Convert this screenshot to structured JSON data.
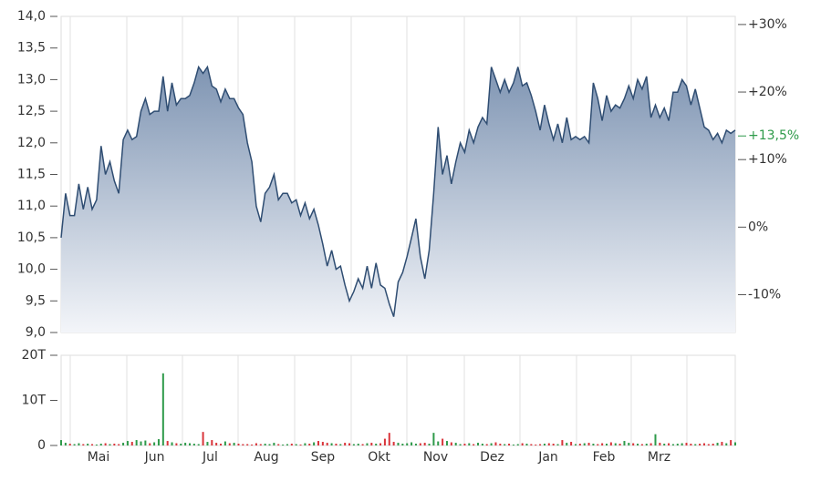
{
  "chart_data": {
    "type": "stock",
    "price": {
      "values": [
        10.5,
        11.2,
        10.85,
        10.85,
        11.35,
        10.95,
        11.3,
        10.95,
        11.1,
        11.95,
        11.5,
        11.7,
        11.4,
        11.2,
        12.05,
        12.2,
        12.05,
        12.1,
        12.5,
        12.7,
        12.45,
        12.5,
        12.5,
        13.05,
        12.5,
        12.95,
        12.6,
        12.7,
        12.7,
        12.75,
        12.95,
        13.2,
        13.1,
        13.2,
        12.9,
        12.85,
        12.65,
        12.85,
        12.7,
        12.7,
        12.55,
        12.45,
        12.0,
        11.7,
        11.0,
        10.75,
        11.2,
        11.3,
        11.5,
        11.1,
        11.2,
        11.2,
        11.05,
        11.1,
        10.85,
        11.05,
        10.8,
        10.95,
        10.7,
        10.4,
        10.05,
        10.3,
        10.0,
        10.05,
        9.75,
        9.5,
        9.65,
        9.85,
        9.7,
        10.05,
        9.7,
        10.1,
        9.75,
        9.7,
        9.45,
        9.25,
        9.8,
        9.95,
        10.2,
        10.5,
        10.8,
        10.2,
        9.85,
        10.3,
        11.2,
        12.25,
        11.5,
        11.8,
        11.35,
        11.7,
        12.0,
        11.85,
        12.2,
        12.0,
        12.25,
        12.4,
        12.3,
        13.2,
        13.0,
        12.8,
        13.0,
        12.8,
        12.95,
        13.2,
        12.9,
        12.95,
        12.75,
        12.5,
        12.2,
        12.6,
        12.3,
        12.05,
        12.3,
        12.0,
        12.4,
        12.05,
        12.1,
        12.05,
        12.1,
        12.0,
        12.95,
        12.7,
        12.35,
        12.75,
        12.5,
        12.6,
        12.55,
        12.7,
        12.9,
        12.7,
        13.0,
        12.85,
        13.05,
        12.4,
        12.6,
        12.4,
        12.55,
        12.35,
        12.8,
        12.8,
        13.0,
        12.9,
        12.6,
        12.85,
        12.55,
        12.25,
        12.2,
        12.05,
        12.15,
        12.0,
        12.2,
        12.15,
        12.2
      ],
      "color": "#2f4d72",
      "ylim": [
        9.0,
        14.0
      ],
      "yticks": [
        {
          "value": 9.0,
          "label": "9,0"
        },
        {
          "value": 9.5,
          "label": "9,5"
        },
        {
          "value": 10.0,
          "label": "10,0"
        },
        {
          "value": 10.5,
          "label": "10,5"
        },
        {
          "value": 11.0,
          "label": "11,0"
        },
        {
          "value": 11.5,
          "label": "11,5"
        },
        {
          "value": 12.0,
          "label": "12,0"
        },
        {
          "value": 12.5,
          "label": "12,5"
        },
        {
          "value": 13.0,
          "label": "13,0"
        },
        {
          "value": 13.5,
          "label": "13,5"
        },
        {
          "value": 14.0,
          "label": "14,0"
        }
      ],
      "y2lim": [
        -15.6,
        31.2
      ],
      "y2ticks": [
        {
          "value": -10,
          "label": "-10%"
        },
        {
          "value": 0,
          "label": "0%"
        },
        {
          "value": 10,
          "label": "+10%"
        },
        {
          "value": 20,
          "label": "+20%"
        },
        {
          "value": 30,
          "label": "+30%"
        }
      ],
      "current_change": {
        "value": 13.5,
        "label": "+13,5%",
        "color": "#2e9a4a"
      }
    },
    "volume": {
      "values": [
        1200,
        600,
        400,
        300,
        500,
        300,
        400,
        300,
        200,
        400,
        500,
        300,
        400,
        300,
        600,
        1000,
        800,
        1200,
        900,
        1100,
        500,
        700,
        1400,
        16000,
        1000,
        700,
        500,
        400,
        600,
        500,
        400,
        300,
        3000,
        800,
        1200,
        600,
        400,
        900,
        500,
        600,
        400,
        300,
        300,
        200,
        500,
        300,
        400,
        300,
        600,
        300,
        200,
        300,
        400,
        300,
        200,
        500,
        400,
        700,
        1000,
        800,
        600,
        500,
        400,
        300,
        600,
        500,
        300,
        400,
        300,
        500,
        600,
        400,
        500,
        1500,
        2800,
        800,
        600,
        400,
        500,
        700,
        400,
        500,
        600,
        400,
        2800,
        900,
        1500,
        1000,
        700,
        600,
        300,
        400,
        500,
        300,
        600,
        400,
        300,
        500,
        700,
        400,
        300,
        400,
        200,
        300,
        500,
        400,
        300,
        200,
        300,
        400,
        500,
        400,
        300,
        1200,
        600,
        800,
        300,
        400,
        500,
        600,
        400,
        300,
        500,
        400,
        700,
        500,
        400,
        1000,
        600,
        500,
        400,
        300,
        400,
        500,
        2500,
        600,
        400,
        500,
        300,
        400,
        500,
        600,
        400,
        300,
        400,
        500,
        300,
        400,
        600,
        800,
        500,
        1200,
        700
      ],
      "up_color": "#2e9a4a",
      "down_color": "#d9343a",
      "ylim": [
        0,
        20000
      ],
      "yticks": [
        0,
        {
          "value": 10000,
          "label": "10T"
        },
        {
          "value": 20000,
          "label": "20T"
        }
      ]
    },
    "x_labels": [
      "Mai",
      "Jun",
      "Jul",
      "Aug",
      "Sep",
      "Okt",
      "Nov",
      "Dez",
      "Jan",
      "Feb",
      "Mrz"
    ],
    "grid": true
  }
}
